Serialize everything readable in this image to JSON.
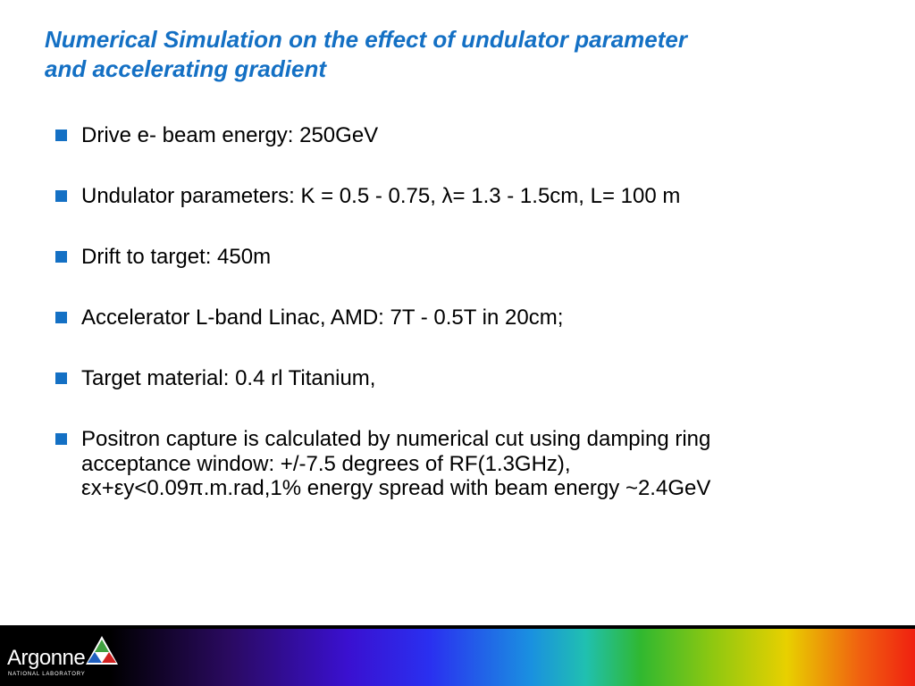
{
  "header": {
    "title_lines": [
      "Numerical Simulation on the effect of undulator parameter",
      "and accelerating gradient"
    ]
  },
  "bullets": [
    {
      "lines": [
        "Drive e- beam energy: 250GeV"
      ]
    },
    {
      "lines": [
        "Undulator parameters: K = 0.5 - 0.75, λ= 1.3 - 1.5cm, L= 100 m"
      ]
    },
    {
      "lines": [
        "Drift to target: 450m"
      ]
    },
    {
      "lines": [
        "Accelerator L-band Linac, AMD: 7T - 0.5T in 20cm;"
      ]
    },
    {
      "lines": [
        "Target material: 0.4 rl Titanium,"
      ]
    },
    {
      "lines": [
        "Positron capture is calculated by numerical cut using damping ring",
        "acceptance window: +/-7.5 degrees of RF(1.3GHz),",
        "εx+εy<0.09π.m.rad,1% energy spread with beam energy ~2.4GeV"
      ]
    }
  ],
  "footer": {
    "logo_name": "Argonne",
    "logo_sub": "NATIONAL LABORATORY"
  }
}
